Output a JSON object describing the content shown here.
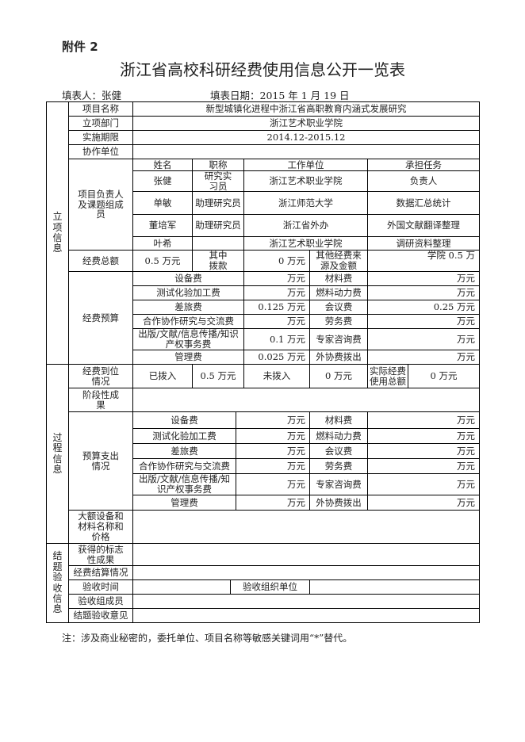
{
  "header": {
    "attachment": "附件 2",
    "title": "浙江省高校科研经费使用信息公开一览表",
    "filler": "填表人：张健",
    "date": "填表日期：2015 年 1 月 19 日"
  },
  "sections": {
    "project": "立项信息",
    "process": "过程信息",
    "closing": "结题验收信息"
  },
  "project": {
    "name_label": "项目名称",
    "name": "新型城镇化进程中浙江省高职教育内涵式发展研究",
    "dept_label": "立项部门",
    "dept": "浙江艺术职业学院",
    "period_label": "实施期限",
    "period": "2014.12-2015.12",
    "partner_label": "协作单位",
    "partner": "",
    "members_label": "项目负责人及课题组成员",
    "member_headers": [
      "姓名",
      "职称",
      "工作单位",
      "承担任务"
    ],
    "members": [
      [
        "张健",
        "研究实习员",
        "浙江艺术职业学院",
        "负责人"
      ],
      [
        "单敏",
        "助理研究员",
        "浙江师范大学",
        "数据汇总统计"
      ],
      [
        "董培军",
        "助理研究员",
        "浙江省外办",
        "外国文献翻译整理"
      ],
      [
        "叶希",
        "",
        "浙江艺术职业学院",
        "调研资料整理"
      ]
    ],
    "total_label": "经费总额",
    "total": "0.5 万元",
    "grant_label": "其中拨款",
    "grant": "0 万元",
    "other_label": "其他经费来源及金额",
    "other": "学院 0.5 万",
    "budget_label": "经费预算",
    "budget": [
      [
        "设备费",
        "万元",
        "材料费",
        "万元"
      ],
      [
        "测试化验加工费",
        "万元",
        "燃料动力费",
        "万元"
      ],
      [
        "差旅费",
        "0.125 万元",
        "会议费",
        "0.25 万元"
      ],
      [
        "合作协作研究与交流费",
        "万元",
        "劳务费",
        "万元"
      ],
      [
        "出版/文献/信息传播/知识产权事务费",
        "0.1 万元",
        "专家咨询费",
        "万元"
      ],
      [
        "管理费",
        "0.025 万元",
        "外协费拨出",
        "万元"
      ]
    ]
  },
  "process": {
    "funding_label": "经费到位情况",
    "allocated_label": "已拨入",
    "allocated": "0.5 万元",
    "pending_label": "未拨入",
    "pending": "0 万元",
    "actual_label": "实际经费使用总额",
    "actual": "0 万元",
    "stage_label": "阶段性成果",
    "expense_label": "预算支出情况",
    "expenses": [
      [
        "设备费",
        "万元",
        "材料费",
        "万元"
      ],
      [
        "测试化验加工费",
        "万元",
        "燃料动力费",
        "万元"
      ],
      [
        "差旅费",
        "万元",
        "会议费",
        "万元"
      ],
      [
        "合作协作研究与交流费",
        "万元",
        "劳务费",
        "万元"
      ],
      [
        "出版/文献/信息传播/知识产权事务费",
        "万元",
        "专家咨询费",
        "万元"
      ],
      [
        "管理费",
        "万元",
        "外协费拨出",
        "万元"
      ]
    ],
    "equipment_label": "大额设备和材料名称和价格"
  },
  "closing": {
    "achievement_label": "获得的标志性成果",
    "settlement_label": "经费结算情况",
    "time_label": "验收时间",
    "org_label": "验收组织单位",
    "members_label": "验收组成员",
    "opinion_label": "结题验收意见"
  },
  "note": "注：涉及商业秘密的，委托单位、项目名称等敏感关键词用“*”替代。"
}
